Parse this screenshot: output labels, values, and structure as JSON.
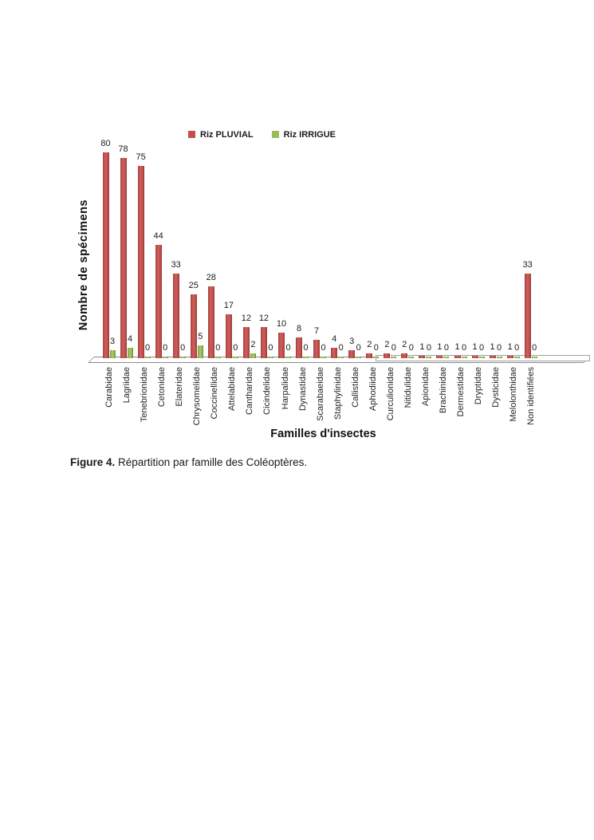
{
  "chart_data": {
    "type": "bar",
    "title": "",
    "xlabel": "Familles d'insectes",
    "ylabel": "Nombre de spécimens",
    "ylim": [
      0,
      85
    ],
    "grid": false,
    "legend_position": "top",
    "categories": [
      "Carabidae",
      "Lagriidae",
      "Tenebrionidae",
      "Cetonidae",
      "Elateridae",
      "Chrysomelidae",
      "Coccinellidae",
      "Attelabidae",
      "Cantharidae",
      "Cicindelidae",
      "Harpalidae",
      "Dynastidae",
      "Scarabaeidae",
      "Staphylinidae",
      "Callistidae",
      "Aphodiidae",
      "Curculionidae",
      "Nitidulidae",
      "Apionidae",
      "Brachinidae",
      "Dermestidae",
      "Dryptidae",
      "Dysticidae",
      "Melolonthidae",
      "Non identifiées"
    ],
    "series": [
      {
        "name": "Riz PLUVIAL",
        "color": "#C0504D",
        "values": [
          80,
          78,
          75,
          44,
          33,
          25,
          28,
          17,
          12,
          12,
          10,
          8,
          7,
          4,
          3,
          2,
          2,
          2,
          1,
          1,
          1,
          1,
          1,
          1,
          33
        ]
      },
      {
        "name": "Riz IRRIGUE",
        "color": "#9BBB59",
        "values": [
          3,
          4,
          0,
          0,
          0,
          5,
          0,
          0,
          2,
          0,
          0,
          0,
          0,
          0,
          0,
          0,
          0,
          0,
          0,
          0,
          0,
          0,
          0,
          0,
          0
        ]
      }
    ]
  },
  "caption": {
    "label": "Figure 4.",
    "text": " Répartition par famille des Coléoptères."
  },
  "colors": {
    "pluvial": "#C0504D",
    "irrigue": "#9BBB59",
    "floor_border": "#8c8c8c"
  }
}
